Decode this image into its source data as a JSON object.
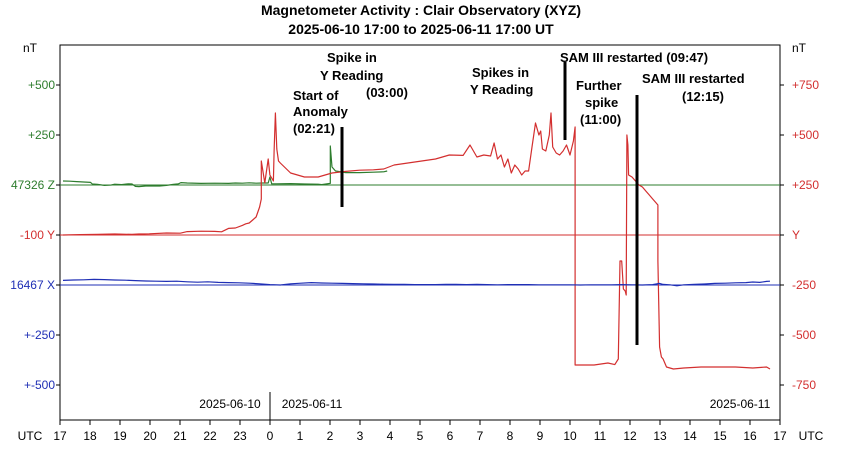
{
  "chart_data": {
    "type": "line",
    "title": "Magnetometer Activity : Clair Observatory (XYZ)",
    "subtitle": "2025-06-10 17:00 to 2025-06-11 17:00 UT",
    "x_axis": {
      "unit_label": "UTC",
      "range_hours_since_start": [
        0,
        24
      ],
      "tick_labels": [
        "17",
        "18",
        "19",
        "20",
        "21",
        "22",
        "23",
        "0",
        "1",
        "2",
        "3",
        "4",
        "5",
        "6",
        "7",
        "8",
        "9",
        "10",
        "11",
        "12",
        "13",
        "14",
        "15",
        "16",
        "17"
      ],
      "date_labels": [
        "2025-06-10",
        "2025-06-11",
        "2025-06-11"
      ]
    },
    "left_axis": {
      "unit_label": "nT",
      "ticks": [
        {
          "label": "+500",
          "color": "#2e7d2e"
        },
        {
          "label": "+250",
          "color": "#2e7d2e"
        },
        {
          "label": "47326 Z",
          "color": "#2e7d2e"
        },
        {
          "label": "-100  Y",
          "color": "#d32f2f"
        },
        {
          "label": "16467 X",
          "color": "#1f2fb5"
        },
        {
          "label": "+-250",
          "color": "#1f2fb5"
        },
        {
          "label": "+-500",
          "color": "#1f2fb5"
        }
      ]
    },
    "right_axis": {
      "unit_label": "nT",
      "ticks": [
        "+750",
        "+500",
        "+250",
        "Y",
        "-250",
        "-500",
        "-750"
      ]
    },
    "series": [
      {
        "name": "Z",
        "color": "#2e7d2e",
        "baseline": 47326,
        "points": [
          [
            0,
            20
          ],
          [
            2,
            19
          ],
          [
            4,
            17
          ],
          [
            6,
            15
          ],
          [
            8,
            13
          ],
          [
            8.5,
            5
          ],
          [
            10,
            3
          ],
          [
            12,
            -2
          ],
          [
            14,
            0
          ],
          [
            15,
            4
          ],
          [
            17,
            2
          ],
          [
            19,
            6
          ],
          [
            20,
            5
          ],
          [
            21,
            -7
          ],
          [
            22,
            -8
          ],
          [
            24,
            -5
          ],
          [
            28,
            -5
          ],
          [
            30,
            -2
          ],
          [
            32,
            3
          ],
          [
            33.5,
            6
          ],
          [
            34.2,
            12
          ],
          [
            36,
            10
          ],
          [
            40,
            8
          ],
          [
            44,
            9
          ],
          [
            48,
            8
          ],
          [
            50,
            10
          ],
          [
            52,
            9
          ],
          [
            54,
            11
          ],
          [
            56,
            9
          ],
          [
            58,
            10
          ],
          [
            59.5,
            10
          ],
          [
            60,
            40
          ],
          [
            60.5,
            6
          ],
          [
            62,
            6
          ],
          [
            66,
            7
          ],
          [
            70,
            5
          ],
          [
            74,
            4
          ],
          [
            75,
            2
          ],
          [
            77.5,
            8
          ],
          [
            77.5,
            195
          ],
          [
            78,
            90
          ],
          [
            79,
            70
          ],
          [
            82,
            62
          ],
          [
            86,
            62
          ],
          [
            90,
            64
          ],
          [
            93,
            66
          ],
          [
            94,
            70
          ]
        ]
      },
      {
        "name": "Y",
        "color": "#d32f2f",
        "baseline": -100,
        "points": [
          [
            0,
            0
          ],
          [
            5,
            2
          ],
          [
            10,
            3
          ],
          [
            15,
            5
          ],
          [
            20,
            3
          ],
          [
            22,
            5
          ],
          [
            25,
            6
          ],
          [
            30,
            10
          ],
          [
            34,
            9
          ],
          [
            36,
            17
          ],
          [
            40,
            19
          ],
          [
            44,
            18
          ],
          [
            46,
            16
          ],
          [
            48,
            33
          ],
          [
            50,
            35
          ],
          [
            52,
            48
          ],
          [
            53,
            56
          ],
          [
            54,
            60
          ],
          [
            55,
            75
          ],
          [
            56,
            90
          ],
          [
            57,
            140
          ],
          [
            57.5,
            180
          ],
          [
            57.5,
            370
          ],
          [
            58.5,
            260
          ],
          [
            59.5,
            380
          ],
          [
            60,
            300
          ],
          [
            61,
            270
          ],
          [
            61.2,
            420
          ],
          [
            61.6,
            610
          ],
          [
            62,
            430
          ],
          [
            62.5,
            370
          ],
          [
            63,
            360
          ],
          [
            66,
            310
          ],
          [
            70,
            290
          ],
          [
            74,
            290
          ],
          [
            78,
            310
          ],
          [
            82,
            318
          ],
          [
            86,
            324
          ],
          [
            90,
            326
          ],
          [
            93,
            330
          ],
          [
            96,
            350
          ],
          [
            100,
            360
          ],
          [
            104,
            370
          ],
          [
            108,
            380
          ],
          [
            112,
            400
          ],
          [
            116,
            398
          ],
          [
            118,
            450
          ],
          [
            120,
            390
          ],
          [
            122,
            400
          ],
          [
            124,
            395
          ],
          [
            125,
            460
          ],
          [
            126,
            380
          ],
          [
            127,
            400
          ],
          [
            128,
            340
          ],
          [
            129,
            380
          ],
          [
            130,
            310
          ],
          [
            131,
            350
          ],
          [
            132,
            330
          ],
          [
            133,
            300
          ],
          [
            134,
            320
          ],
          [
            135,
            320
          ],
          [
            136,
            440
          ],
          [
            137,
            560
          ],
          [
            138,
            500
          ],
          [
            138.5,
            520
          ],
          [
            139,
            430
          ],
          [
            140,
            420
          ],
          [
            141,
            500
          ],
          [
            141.5,
            610
          ],
          [
            142,
            440
          ],
          [
            143,
            410
          ],
          [
            144,
            400
          ],
          [
            145,
            420
          ],
          [
            146,
            450
          ],
          [
            147,
            400
          ],
          [
            148,
            470
          ],
          [
            148.5,
            540
          ],
          [
            148.5,
            -650
          ],
          [
            150,
            -650
          ],
          [
            154,
            -650
          ],
          [
            158,
            -640
          ],
          [
            160,
            -648
          ],
          [
            161,
            -620
          ],
          [
            161.5,
            -130
          ],
          [
            162,
            -130
          ],
          [
            162.5,
            -270
          ],
          [
            163,
            -280
          ],
          [
            163.3,
            -300
          ],
          [
            163.5,
            500
          ],
          [
            163.8,
            450
          ],
          [
            164,
            300
          ],
          [
            165,
            290
          ],
          [
            166,
            270
          ],
          [
            167,
            250
          ],
          [
            168,
            240
          ],
          [
            169,
            220
          ],
          [
            170,
            200
          ],
          [
            171,
            180
          ],
          [
            172,
            160
          ],
          [
            172.5,
            150
          ],
          [
            172.5,
            -130
          ],
          [
            173,
            -560
          ],
          [
            173.5,
            -610
          ],
          [
            174,
            -620
          ],
          [
            175,
            -660
          ],
          [
            177,
            -670
          ],
          [
            180,
            -665
          ],
          [
            185,
            -660
          ],
          [
            190,
            -660
          ],
          [
            195,
            -660
          ],
          [
            200,
            -665
          ],
          [
            204,
            -660
          ],
          [
            205,
            -670
          ]
        ]
      },
      {
        "name": "X",
        "color": "#1f2fb5",
        "baseline": 16467,
        "points": [
          [
            0,
            23
          ],
          [
            3,
            25
          ],
          [
            6,
            26
          ],
          [
            9,
            28
          ],
          [
            12,
            27
          ],
          [
            15,
            25
          ],
          [
            18,
            24
          ],
          [
            21,
            22
          ],
          [
            24,
            20
          ],
          [
            27,
            19
          ],
          [
            30,
            18
          ],
          [
            33,
            19
          ],
          [
            36,
            16
          ],
          [
            39,
            14
          ],
          [
            42,
            16
          ],
          [
            45,
            13
          ],
          [
            48,
            12
          ],
          [
            51,
            11
          ],
          [
            54,
            9
          ],
          [
            57,
            6
          ],
          [
            60,
            2
          ],
          [
            63,
            0
          ],
          [
            66,
            6
          ],
          [
            69,
            9
          ],
          [
            72,
            12
          ],
          [
            75,
            10
          ],
          [
            78,
            9
          ],
          [
            81,
            8
          ],
          [
            84,
            7
          ],
          [
            87,
            6
          ],
          [
            90,
            5
          ],
          [
            93,
            4
          ],
          [
            96,
            3
          ],
          [
            99,
            3
          ],
          [
            102,
            2
          ],
          [
            105,
            2
          ],
          [
            108,
            2
          ],
          [
            111,
            3
          ],
          [
            114,
            3
          ],
          [
            117,
            2
          ],
          [
            120,
            3
          ],
          [
            123,
            2
          ],
          [
            126,
            1
          ],
          [
            129,
            2
          ],
          [
            132,
            2
          ],
          [
            135,
            2
          ],
          [
            138,
            1
          ],
          [
            141,
            1
          ],
          [
            144,
            1
          ],
          [
            147,
            1
          ],
          [
            150,
            0
          ],
          [
            153,
            1
          ],
          [
            156,
            1
          ],
          [
            159,
            1
          ],
          [
            162,
            2
          ],
          [
            165,
            1
          ],
          [
            168,
            0
          ],
          [
            171,
            2
          ],
          [
            173,
            8
          ],
          [
            174,
            3
          ],
          [
            176,
            1
          ],
          [
            178,
            -4
          ],
          [
            180,
            1
          ],
          [
            183,
            3
          ],
          [
            186,
            5
          ],
          [
            189,
            8
          ],
          [
            192,
            9
          ],
          [
            195,
            11
          ],
          [
            198,
            12
          ],
          [
            200,
            15
          ],
          [
            202,
            13
          ],
          [
            204,
            18
          ],
          [
            205,
            19
          ]
        ]
      }
    ],
    "annotations": [
      {
        "lines": [
          "Start of",
          "Anomaly",
          "(02:21)"
        ]
      },
      {
        "lines": [
          "Spike in",
          "Y Reading"
        ]
      },
      {
        "lines": [
          "(03:00)"
        ]
      },
      {
        "lines": [
          "Spikes in",
          "Y Reading"
        ]
      },
      {
        "lines": [
          "SAM III restarted (09:47)"
        ]
      },
      {
        "lines": [
          "Further",
          "spike",
          "(11:00)"
        ]
      },
      {
        "lines": [
          "SAM III restarted",
          "(12:15)"
        ]
      }
    ]
  }
}
